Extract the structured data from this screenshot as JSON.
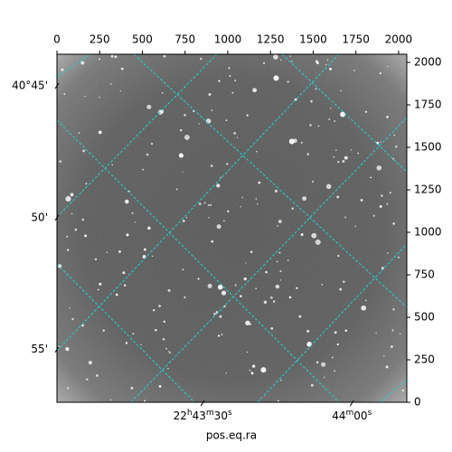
{
  "chart_data": {
    "type": "image",
    "xlabel": "pos.eq.ra",
    "xlim": [
      0,
      2048
    ],
    "xticks": [
      0,
      250,
      500,
      750,
      1000,
      1250,
      1500,
      1750,
      2000
    ],
    "ylim": [
      0,
      2048
    ],
    "yticks": [
      0,
      250,
      500,
      750,
      1000,
      1250,
      1500,
      1750,
      2000
    ],
    "ra_lim": [
      340.753,
      341.046
    ],
    "ra_ticks": [
      {
        "value": 340.875,
        "label": "22h43m30s"
      },
      {
        "value": 341.0,
        "label": "44m00s"
      }
    ],
    "dec_lim": [
      40.73,
      40.95
    ],
    "dec_ticks": [
      {
        "value": 40.75,
        "label": "40°45'"
      },
      {
        "value": 40.8333,
        "label": "50'"
      },
      {
        "value": 40.9167,
        "label": "55'"
      }
    ],
    "grid_color": "#22d3d3"
  }
}
